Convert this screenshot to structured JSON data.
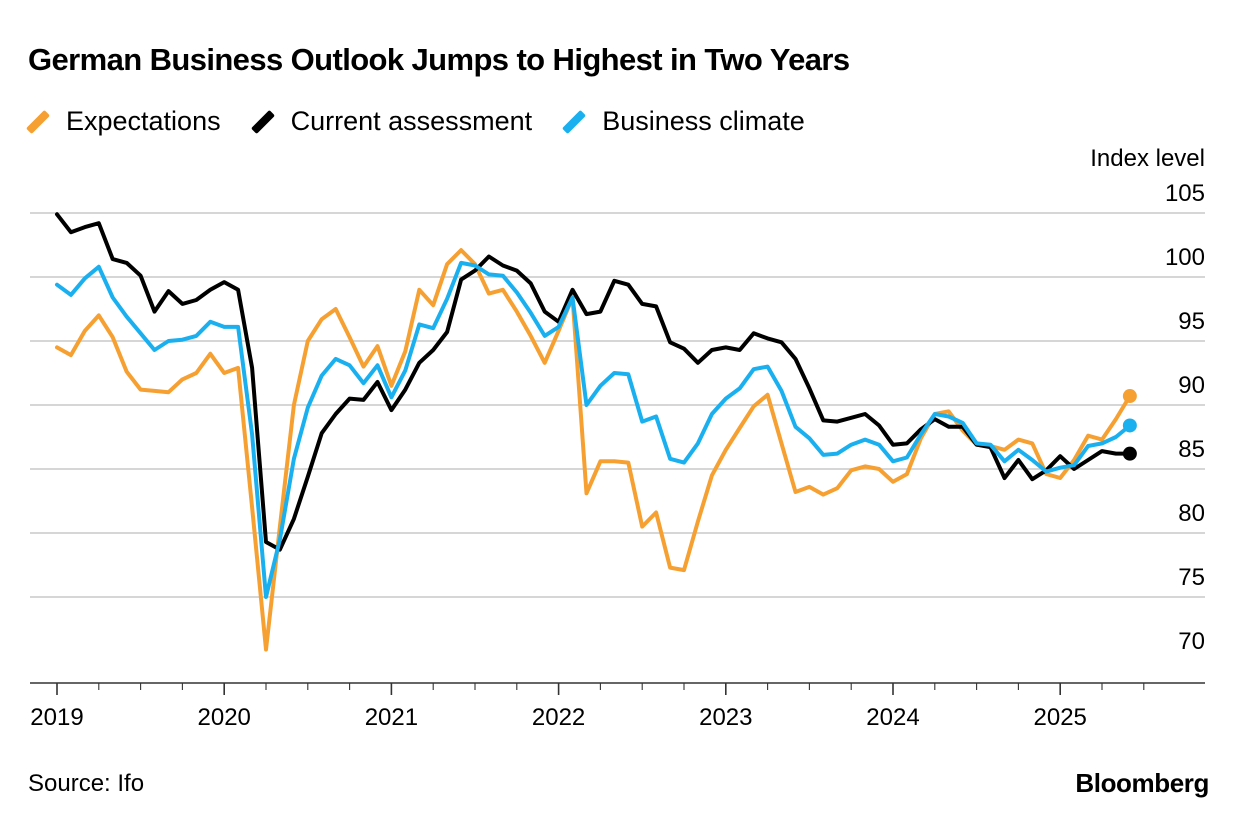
{
  "title": "German Business Outlook Jumps to Highest in Two Years",
  "source": "Source: Ifo",
  "brand": "Bloomberg",
  "chart_data": {
    "type": "line",
    "title": "German Business Outlook Jumps to Highest in Two Years",
    "ylabel": "Index level",
    "ylim": [
      68,
      105
    ],
    "y_ticks": [
      70,
      75,
      80,
      85,
      90,
      95,
      100,
      105
    ],
    "x_ticks": [
      "2019",
      "2020",
      "2021",
      "2022",
      "2023",
      "2024",
      "2025"
    ],
    "grid": true,
    "legend_position": "top-left",
    "x_start": "2019-01",
    "x_end": "2025-07",
    "series": [
      {
        "name": "Expectations",
        "color": "#f6a032",
        "values": [
          94.5,
          93.9,
          95.8,
          97.0,
          95.3,
          92.6,
          91.2,
          91.1,
          91.0,
          92.0,
          92.5,
          94.0,
          92.5,
          92.9,
          82.0,
          70.9,
          80.5,
          90.0,
          95.0,
          96.7,
          97.5,
          95.3,
          93.0,
          94.6,
          91.5,
          94.2,
          99.0,
          97.8,
          101.0,
          102.1,
          101.0,
          98.7,
          99.0,
          97.3,
          95.4,
          93.3,
          95.8,
          98.4,
          83.1,
          85.6,
          85.6,
          85.5,
          80.5,
          81.6,
          77.3,
          77.1,
          80.9,
          84.5,
          86.5,
          88.2,
          89.9,
          90.8,
          87.0,
          83.2,
          83.6,
          83.0,
          83.5,
          84.9,
          85.2,
          85.0,
          84.0,
          84.6,
          87.4,
          89.3,
          89.5,
          88.0,
          86.9,
          86.8,
          86.5,
          87.3,
          87.0,
          84.6,
          84.3,
          85.7,
          87.6,
          87.3,
          88.9,
          90.7
        ]
      },
      {
        "name": "Current assessment",
        "color": "#000000",
        "values": [
          104.9,
          103.5,
          103.9,
          104.2,
          101.4,
          101.1,
          100.1,
          97.3,
          98.9,
          97.9,
          98.2,
          99.0,
          99.6,
          99.0,
          92.9,
          79.3,
          78.7,
          81.1,
          84.4,
          87.8,
          89.3,
          90.5,
          90.4,
          91.8,
          89.6,
          91.2,
          93.3,
          94.3,
          95.7,
          99.8,
          100.5,
          101.6,
          100.9,
          100.5,
          99.5,
          97.3,
          96.5,
          99.0,
          97.1,
          97.3,
          99.7,
          99.4,
          97.9,
          97.7,
          94.9,
          94.4,
          93.3,
          94.3,
          94.5,
          94.3,
          95.6,
          95.2,
          94.9,
          93.6,
          91.3,
          88.8,
          88.7,
          89.0,
          89.3,
          88.4,
          86.9,
          87.0,
          88.1,
          88.9,
          88.3,
          88.3,
          86.9,
          86.7,
          84.3,
          85.7,
          84.2,
          84.9,
          86.0,
          85.0,
          85.7,
          86.4,
          86.2,
          86.2
        ]
      },
      {
        "name": "Business climate",
        "color": "#1ab0f0",
        "values": [
          99.4,
          98.6,
          99.9,
          100.8,
          98.4,
          96.9,
          95.6,
          94.3,
          95.0,
          95.1,
          95.4,
          96.5,
          96.1,
          96.1,
          87.7,
          75.0,
          79.5,
          85.8,
          89.8,
          92.3,
          93.6,
          93.1,
          91.7,
          93.1,
          90.6,
          92.7,
          96.3,
          96.0,
          98.3,
          101.1,
          100.9,
          100.2,
          100.1,
          98.8,
          97.2,
          95.4,
          96.1,
          98.4,
          90.0,
          91.5,
          92.5,
          92.4,
          88.7,
          89.1,
          85.8,
          85.5,
          87.0,
          89.3,
          90.5,
          91.3,
          92.8,
          93.0,
          91.1,
          88.3,
          87.4,
          86.1,
          86.2,
          86.9,
          87.3,
          86.9,
          85.6,
          85.9,
          87.7,
          89.3,
          89.1,
          88.6,
          87.0,
          86.9,
          85.6,
          86.5,
          85.7,
          84.8,
          85.1,
          85.3,
          86.8,
          87.0,
          87.5,
          88.4
        ]
      }
    ]
  }
}
